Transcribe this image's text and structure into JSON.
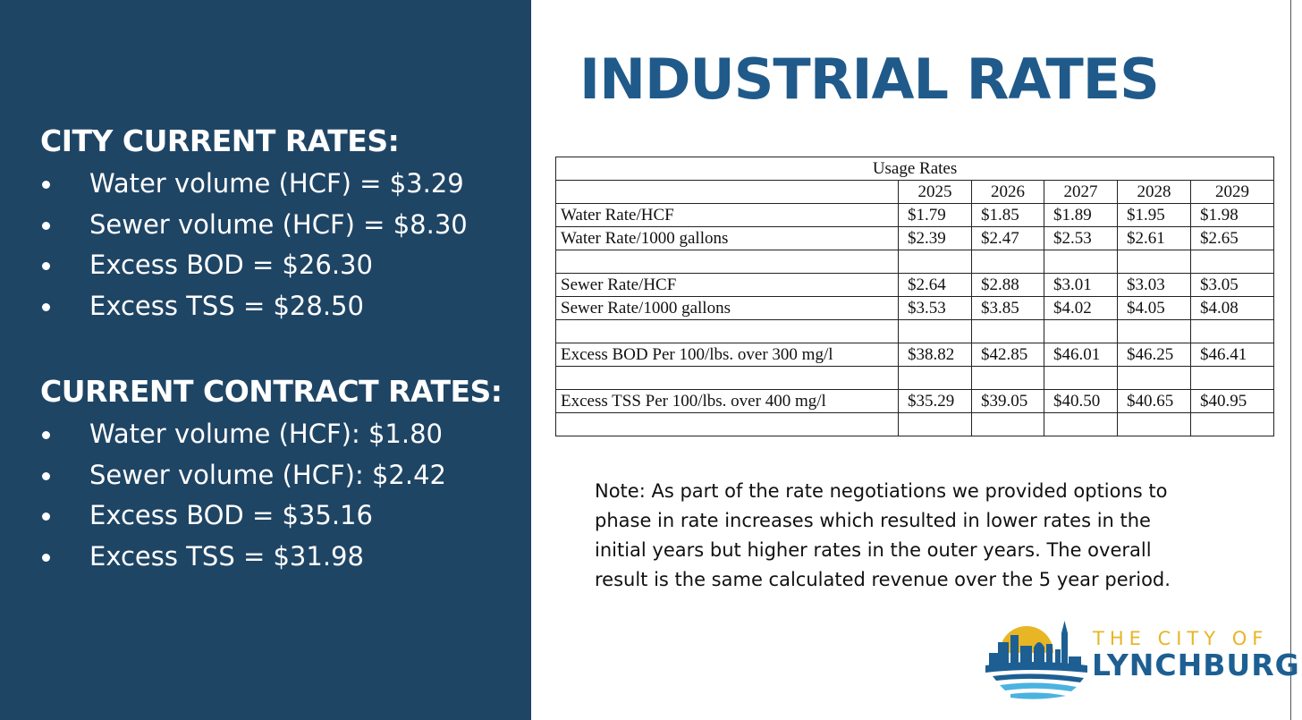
{
  "city_current": {
    "heading": "CITY CURRENT RATES:",
    "items": [
      "Water volume (HCF) = $3.29",
      "Sewer volume (HCF) = $8.30",
      "Excess BOD = $26.30",
      "Excess TSS = $28.50"
    ]
  },
  "contract": {
    "heading": "CURRENT CONTRACT RATES:",
    "items": [
      "Water volume (HCF): $1.80",
      "Sewer volume (HCF): $2.42",
      "Excess BOD = $35.16",
      "Excess TSS = $31.98"
    ]
  },
  "title": "INDUSTRIAL RATES",
  "table": {
    "caption": "Usage Rates",
    "years": [
      "2025",
      "2026",
      "2027",
      "2028",
      "2029"
    ],
    "rows": [
      {
        "label": "Water Rate/HCF",
        "values": [
          "$1.79",
          "$1.85",
          "$1.89",
          "$1.95",
          "$1.98"
        ]
      },
      {
        "label": "Water Rate/1000 gallons",
        "values": [
          "$2.39",
          "$2.47",
          "$2.53",
          "$2.61",
          "$2.65"
        ]
      },
      {
        "label": "",
        "values": [
          "",
          "",
          "",
          "",
          ""
        ]
      },
      {
        "label": "Sewer Rate/HCF",
        "values": [
          "$2.64",
          "$2.88",
          "$3.01",
          "$3.03",
          "$3.05"
        ]
      },
      {
        "label": "Sewer Rate/1000 gallons",
        "values": [
          "$3.53",
          "$3.85",
          "$4.02",
          "$4.05",
          "$4.08"
        ]
      },
      {
        "label": "",
        "values": [
          "",
          "",
          "",
          "",
          ""
        ]
      },
      {
        "label": "Excess BOD Per 100/lbs. over 300 mg/l",
        "values": [
          "$38.82",
          "$42.85",
          "$46.01",
          "$46.25",
          "$46.41"
        ]
      },
      {
        "label": "",
        "values": [
          "",
          "",
          "",
          "",
          ""
        ]
      },
      {
        "label": "Excess TSS Per 100/lbs. over 400 mg/l",
        "values": [
          "$35.29",
          "$39.05",
          "$40.50",
          "$40.65",
          "$40.95"
        ]
      },
      {
        "label": "",
        "values": [
          "",
          "",
          "",
          "",
          ""
        ]
      }
    ]
  },
  "note_lines": [
    "Note: As part of the rate negotiations we provided options to",
    "phase in rate increases which resulted in lower rates in the",
    "initial years but higher rates in the outer years.  The overall",
    "result is the same calculated revenue over the 5 year period."
  ],
  "logo": {
    "top": "THE CITY OF",
    "bottom": "LYNCHBURG",
    "colors": {
      "gold": "#e8b525",
      "blue": "#1d5f92",
      "light_blue": "#4bb3e0"
    }
  },
  "colors": {
    "panel": "#1f4565",
    "title": "#1f5a8a"
  }
}
